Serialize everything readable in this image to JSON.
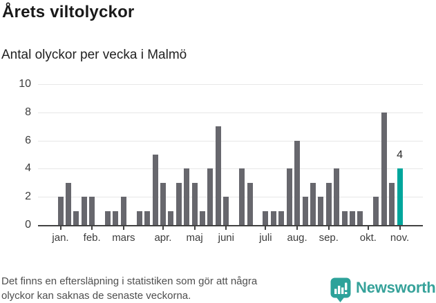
{
  "header": {
    "title": "Årets viltolyckor",
    "subtitle": "Antal olyckor per vecka i Malmö"
  },
  "chart_data": {
    "type": "bar",
    "title": "Årets viltolyckor",
    "subtitle": "Antal olyckor per vecka i Malmö",
    "x_unit": "vecka",
    "values": [
      2,
      3,
      1,
      2,
      2,
      0,
      1,
      1,
      2,
      0,
      1,
      1,
      5,
      3,
      1,
      3,
      4,
      3,
      1,
      4,
      7,
      2,
      0,
      4,
      3,
      0,
      1,
      1,
      1,
      4,
      6,
      2,
      3,
      2,
      3,
      4,
      1,
      1,
      1,
      0,
      2,
      8,
      3,
      4
    ],
    "highlight_index": 43,
    "highlight_value": 4,
    "highlight_label": "4",
    "months": [
      {
        "label": "jan.",
        "slot": 0
      },
      {
        "label": "feb.",
        "slot": 4
      },
      {
        "label": "mars",
        "slot": 8
      },
      {
        "label": "apr.",
        "slot": 13
      },
      {
        "label": "maj",
        "slot": 17
      },
      {
        "label": "juni",
        "slot": 21
      },
      {
        "label": "juli",
        "slot": 26
      },
      {
        "label": "aug.",
        "slot": 30
      },
      {
        "label": "sep.",
        "slot": 34
      },
      {
        "label": "okt.",
        "slot": 39
      },
      {
        "label": "nov.",
        "slot": 43
      }
    ],
    "yticks": [
      0,
      2,
      4,
      6,
      8,
      10
    ],
    "ylim": [
      0,
      10
    ],
    "grid": true,
    "legend": "none",
    "colors": {
      "bar": "#67676d",
      "highlight": "#00a69c",
      "grid": "#e7e7e7",
      "axis": "#414141"
    }
  },
  "footer": {
    "note_line1": "Det finns en eftersläpning i statistiken som gör att några",
    "note_line2": "olyckor kan saknas de senaste veckorna.",
    "brand": "Newsworthy",
    "brand_color": "#36a29a"
  }
}
